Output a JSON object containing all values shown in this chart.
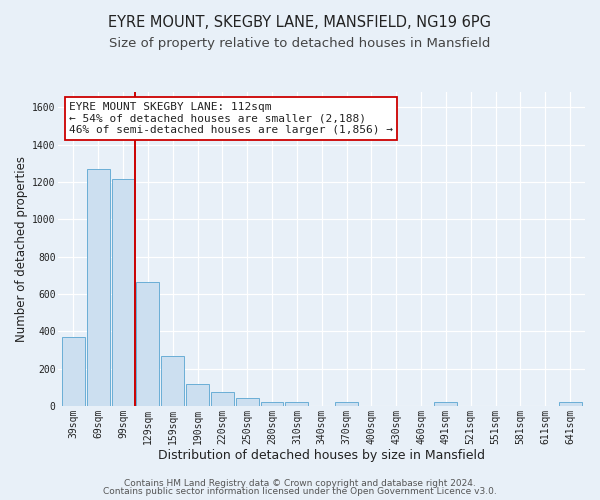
{
  "title": "EYRE MOUNT, SKEGBY LANE, MANSFIELD, NG19 6PG",
  "subtitle": "Size of property relative to detached houses in Mansfield",
  "xlabel": "Distribution of detached houses by size in Mansfield",
  "ylabel": "Number of detached properties",
  "categories": [
    "39sqm",
    "69sqm",
    "99sqm",
    "129sqm",
    "159sqm",
    "190sqm",
    "220sqm",
    "250sqm",
    "280sqm",
    "310sqm",
    "340sqm",
    "370sqm",
    "400sqm",
    "430sqm",
    "460sqm",
    "491sqm",
    "521sqm",
    "551sqm",
    "581sqm",
    "611sqm",
    "641sqm"
  ],
  "values": [
    370,
    1270,
    1215,
    665,
    270,
    115,
    75,
    40,
    20,
    20,
    0,
    20,
    0,
    0,
    0,
    20,
    0,
    0,
    0,
    0,
    20
  ],
  "bar_color": "#ccdff0",
  "bar_edge_color": "#6aaed6",
  "vline_x": 2.5,
  "vline_color": "#cc0000",
  "annotation_title": "EYRE MOUNT SKEGBY LANE: 112sqm",
  "annotation_line1": "← 54% of detached houses are smaller (2,188)",
  "annotation_line2": "46% of semi-detached houses are larger (1,856) →",
  "annotation_box_facecolor": "#ffffff",
  "annotation_box_edgecolor": "#cc0000",
  "ylim": [
    0,
    1680
  ],
  "yticks": [
    0,
    200,
    400,
    600,
    800,
    1000,
    1200,
    1400,
    1600
  ],
  "footer1": "Contains HM Land Registry data © Crown copyright and database right 2024.",
  "footer2": "Contains public sector information licensed under the Open Government Licence v3.0.",
  "bg_color": "#e8f0f8",
  "plot_bg_color": "#e8f0f8",
  "grid_color": "#ffffff",
  "title_fontsize": 10.5,
  "subtitle_fontsize": 9.5,
  "xlabel_fontsize": 9,
  "ylabel_fontsize": 8.5,
  "tick_fontsize": 7,
  "annotation_fontsize": 8,
  "footer_fontsize": 6.5
}
